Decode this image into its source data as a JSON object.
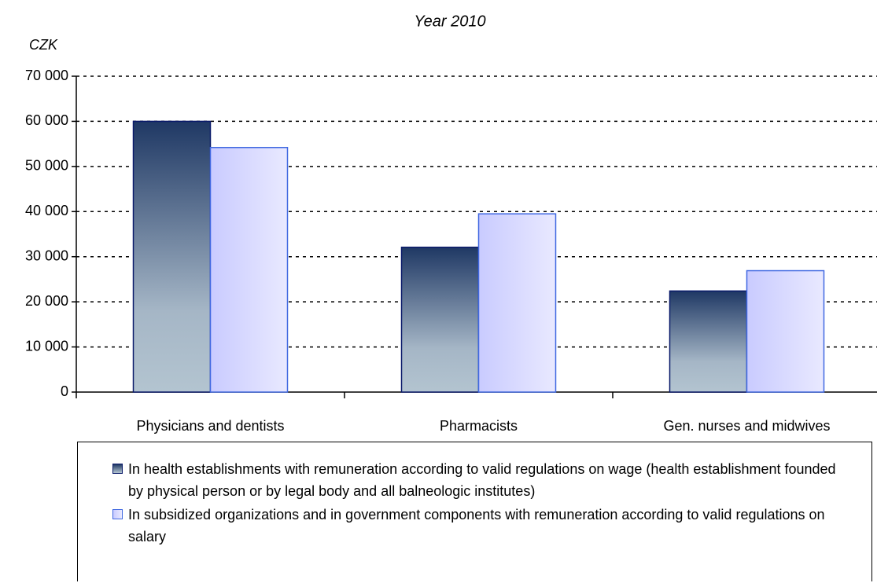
{
  "chart_data": {
    "type": "bar",
    "title": "Year 2010",
    "y_label": "CZK",
    "categories": [
      "Physicians and dentists",
      "Pharmacists",
      "Gen. nurses and midwives"
    ],
    "series": [
      {
        "name": "In health establishments with remuneration according to valid regulations on wage (health establishment founded by physical person or by legal body and all balneologic institutes)",
        "color": "#1f3864",
        "values": [
          60000,
          32100,
          22400
        ]
      },
      {
        "name": "In subsidized organizations and in government components with remuneration according to valid regulations on salary",
        "color": "#c9cbff",
        "values": [
          54200,
          39500,
          26900
        ]
      }
    ],
    "ylim": [
      0,
      70000
    ],
    "yticks": [
      0,
      {
        "value": 10000,
        "label": "10 000"
      },
      {
        "value": 20000,
        "label": "20 000"
      },
      {
        "value": 30000,
        "label": "30 000"
      },
      {
        "value": 40000,
        "label": "40 000"
      },
      {
        "value": 50000,
        "label": "50 000"
      },
      {
        "value": 60000,
        "label": "60 000"
      },
      {
        "value": 70000,
        "label": "70 000"
      }
    ],
    "grid": true,
    "legend": "bottom"
  }
}
